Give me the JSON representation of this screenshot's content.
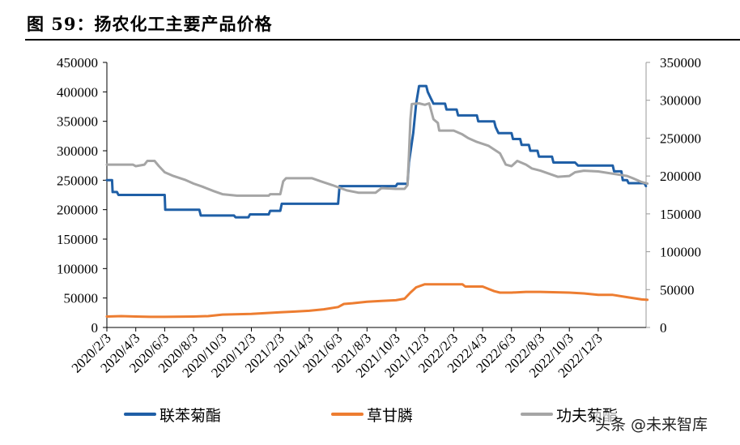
{
  "title": "图 59：扬农化工主要产品价格",
  "watermark": "头条 @未来智库",
  "chart_data": {
    "type": "line",
    "title": "图 59：扬农化工主要产品价格",
    "xlabel": "",
    "ylabel_left": "",
    "ylabel_right": "",
    "grid": false,
    "legend_position": "bottom",
    "x_tick_labels": [
      "2020/2/3",
      "2020/4/3",
      "2020/6/3",
      "2020/8/3",
      "2020/10/3",
      "2020/12/3",
      "2021/2/3",
      "2021/4/3",
      "2021/6/3",
      "2021/8/3",
      "2021/10/3",
      "2021/12/3",
      "2022/2/3",
      "2022/4/3",
      "2022/6/3",
      "2022/8/3",
      "2022/10/3",
      "2022/12/3"
    ],
    "y_left": {
      "min": 0,
      "max": 450000,
      "step": 50000,
      "ticks": [
        "0",
        "50000",
        "100000",
        "150000",
        "200000",
        "250000",
        "300000",
        "350000",
        "400000",
        "450000"
      ]
    },
    "y_right": {
      "min": 0,
      "max": 350000,
      "step": 50000,
      "ticks": [
        "0",
        "50000",
        "100000",
        "150000",
        "200000",
        "250000",
        "300000",
        "350000"
      ]
    },
    "series": [
      {
        "name": "联苯菊酯",
        "axis": "left",
        "color": "#1f5fa6",
        "points": [
          [
            0,
            250000
          ],
          [
            0.18,
            250000
          ],
          [
            0.2,
            230000
          ],
          [
            0.35,
            230000
          ],
          [
            0.4,
            225000
          ],
          [
            2.0,
            225000
          ],
          [
            2.02,
            200000
          ],
          [
            3.2,
            200000
          ],
          [
            3.25,
            190000
          ],
          [
            4.4,
            190000
          ],
          [
            4.45,
            187000
          ],
          [
            4.9,
            187000
          ],
          [
            4.95,
            192000
          ],
          [
            5.6,
            192000
          ],
          [
            5.65,
            198000
          ],
          [
            6.0,
            198000
          ],
          [
            6.05,
            210000
          ],
          [
            8.0,
            210000
          ],
          [
            8.05,
            240000
          ],
          [
            10.0,
            240000
          ],
          [
            10.05,
            244000
          ],
          [
            10.4,
            244000
          ],
          [
            10.45,
            280000
          ],
          [
            10.6,
            330000
          ],
          [
            10.7,
            380000
          ],
          [
            10.8,
            410000
          ],
          [
            11.05,
            410000
          ],
          [
            11.1,
            400000
          ],
          [
            11.2,
            390000
          ],
          [
            11.3,
            380000
          ],
          [
            11.7,
            380000
          ],
          [
            11.75,
            370000
          ],
          [
            12.1,
            370000
          ],
          [
            12.15,
            360000
          ],
          [
            12.8,
            360000
          ],
          [
            12.85,
            350000
          ],
          [
            13.4,
            350000
          ],
          [
            13.45,
            340000
          ],
          [
            13.55,
            330000
          ],
          [
            14.0,
            330000
          ],
          [
            14.05,
            320000
          ],
          [
            14.3,
            320000
          ],
          [
            14.35,
            310000
          ],
          [
            14.6,
            310000
          ],
          [
            14.65,
            300000
          ],
          [
            14.9,
            300000
          ],
          [
            14.95,
            290000
          ],
          [
            15.4,
            290000
          ],
          [
            15.45,
            280000
          ],
          [
            16.2,
            280000
          ],
          [
            16.3,
            275000
          ],
          [
            17.5,
            275000
          ],
          [
            17.55,
            265000
          ],
          [
            17.8,
            265000
          ],
          [
            17.85,
            250000
          ],
          [
            18.0,
            250000
          ],
          [
            18.05,
            245000
          ],
          [
            18.6,
            245000
          ],
          [
            18.65,
            240000
          ]
        ]
      },
      {
        "name": "草甘膦",
        "axis": "right",
        "color": "#ed7d31",
        "points": [
          [
            0,
            14500
          ],
          [
            0.5,
            15000
          ],
          [
            1.0,
            14500
          ],
          [
            1.5,
            14000
          ],
          [
            2.0,
            14000
          ],
          [
            3.0,
            14500
          ],
          [
            3.5,
            15000
          ],
          [
            4.0,
            17000
          ],
          [
            5.0,
            18000
          ],
          [
            5.5,
            19000
          ],
          [
            6.0,
            20000
          ],
          [
            6.5,
            21000
          ],
          [
            7.0,
            22000
          ],
          [
            7.5,
            24000
          ],
          [
            8.0,
            27000
          ],
          [
            8.2,
            31000
          ],
          [
            8.5,
            32000
          ],
          [
            9.0,
            34000
          ],
          [
            9.5,
            35000
          ],
          [
            10.0,
            36000
          ],
          [
            10.3,
            38000
          ],
          [
            10.5,
            46000
          ],
          [
            10.7,
            53000
          ],
          [
            11.0,
            57000
          ],
          [
            12.0,
            57000
          ],
          [
            12.3,
            57000
          ],
          [
            12.4,
            54000
          ],
          [
            13.0,
            54000
          ],
          [
            13.2,
            51000
          ],
          [
            13.4,
            48000
          ],
          [
            13.6,
            46000
          ],
          [
            14.0,
            46000
          ],
          [
            14.5,
            47000
          ],
          [
            15.0,
            47000
          ],
          [
            16.0,
            46000
          ],
          [
            16.5,
            45000
          ],
          [
            17.0,
            43000
          ],
          [
            17.5,
            43000
          ],
          [
            18.0,
            40000
          ],
          [
            18.5,
            37000
          ],
          [
            18.7,
            36500
          ]
        ]
      },
      {
        "name": "功夫菊酯",
        "axis": "right",
        "color": "#a5a5a5",
        "points": [
          [
            0,
            215000
          ],
          [
            0.9,
            215000
          ],
          [
            1.0,
            213000
          ],
          [
            1.3,
            215000
          ],
          [
            1.4,
            220000
          ],
          [
            1.65,
            220000
          ],
          [
            1.8,
            213000
          ],
          [
            2.0,
            205000
          ],
          [
            2.3,
            200000
          ],
          [
            2.7,
            195000
          ],
          [
            3.0,
            190000
          ],
          [
            3.3,
            186000
          ],
          [
            3.7,
            180000
          ],
          [
            4.0,
            176000
          ],
          [
            4.5,
            174000
          ],
          [
            5.6,
            174000
          ],
          [
            5.65,
            176000
          ],
          [
            6.0,
            176000
          ],
          [
            6.1,
            193000
          ],
          [
            6.2,
            197000
          ],
          [
            7.1,
            197000
          ],
          [
            7.4,
            193000
          ],
          [
            7.8,
            188000
          ],
          [
            8.3,
            181000
          ],
          [
            8.7,
            178000
          ],
          [
            9.3,
            178000
          ],
          [
            9.5,
            184000
          ],
          [
            10.0,
            183000
          ],
          [
            10.3,
            183000
          ],
          [
            10.4,
            188000
          ],
          [
            10.45,
            228000
          ],
          [
            10.5,
            275000
          ],
          [
            10.55,
            295000
          ],
          [
            10.8,
            296000
          ],
          [
            11.0,
            294000
          ],
          [
            11.15,
            296000
          ],
          [
            11.3,
            275000
          ],
          [
            11.45,
            270000
          ],
          [
            11.5,
            260000
          ],
          [
            12.0,
            260000
          ],
          [
            12.3,
            255000
          ],
          [
            12.5,
            250000
          ],
          [
            12.8,
            245000
          ],
          [
            13.2,
            240000
          ],
          [
            13.6,
            230000
          ],
          [
            13.8,
            215000
          ],
          [
            14.0,
            213000
          ],
          [
            14.2,
            220000
          ],
          [
            14.5,
            215000
          ],
          [
            14.7,
            210000
          ],
          [
            15.0,
            207000
          ],
          [
            15.3,
            203000
          ],
          [
            15.6,
            199000
          ],
          [
            16.0,
            200000
          ],
          [
            16.2,
            205000
          ],
          [
            16.5,
            207000
          ],
          [
            17.0,
            206000
          ],
          [
            18.0,
            200000
          ],
          [
            18.2,
            197000
          ],
          [
            18.5,
            192000
          ],
          [
            18.7,
            190000
          ]
        ]
      }
    ]
  },
  "legend": [
    {
      "label": "联苯菊酯",
      "color": "#1f5fa6"
    },
    {
      "label": "草甘膦",
      "color": "#ed7d31"
    },
    {
      "label": "功夫菊酯",
      "color": "#a5a5a5"
    }
  ]
}
